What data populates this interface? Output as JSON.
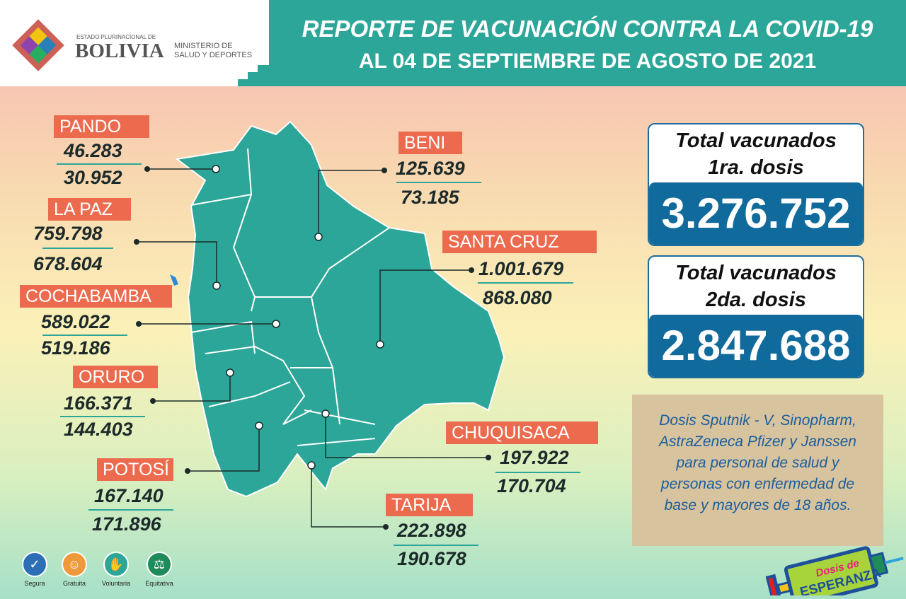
{
  "header": {
    "logo_small": "ESTADO PLURINACIONAL DE",
    "logo_big": "BOLIVIA",
    "ministry_line1": "MINISTERIO DE",
    "ministry_line2": "SALUD Y DEPORTES",
    "title": "REPORTE DE VACUNACIÓN CONTRA LA COVID-19",
    "subtitle": "AL 04 DE SEPTIEMBRE DE AGOSTO DE 2021"
  },
  "departments": [
    {
      "name": "PANDO",
      "dose1": "46.283",
      "dose2": "30.952"
    },
    {
      "name": "LA PAZ",
      "dose1": "759.798",
      "dose2": "678.604"
    },
    {
      "name": "COCHABAMBA",
      "dose1": "589.022",
      "dose2": "519.186"
    },
    {
      "name": "ORURO",
      "dose1": "166.371",
      "dose2": "144.403"
    },
    {
      "name": "POTOSÍ",
      "dose1": "167.140",
      "dose2": "171.896"
    },
    {
      "name": "BENI",
      "dose1": "125.639",
      "dose2": "73.185"
    },
    {
      "name": "SANTA CRUZ",
      "dose1": "1.001.679",
      "dose2": "868.080"
    },
    {
      "name": "CHUQUISACA",
      "dose1": "197.922",
      "dose2": "170.704"
    },
    {
      "name": "TARIJA",
      "dose1": "222.898",
      "dose2": "190.678"
    }
  ],
  "totals": {
    "first": {
      "line1": "Total vacunados",
      "line2": "1ra. dosis",
      "value": "3.276.752"
    },
    "second": {
      "line1": "Total vacunados",
      "line2": "2da. dosis",
      "value": "2.847.688"
    }
  },
  "note": {
    "lines": [
      "Dosis Sputnik - V, Sinopharm,",
      "AstraZeneca Pfizer y Janssen",
      "para personal de salud y",
      "personas con enfermedad de",
      "base y mayores de 18 años."
    ]
  },
  "badges": [
    {
      "label": "Segura",
      "icon": "shield-check-icon",
      "color": "#2c6fb5"
    },
    {
      "label": "Gratuita",
      "icon": "smiley-icon",
      "color": "#f0993a"
    },
    {
      "label": "Voluntaria",
      "icon": "raised-hand-icon",
      "color": "#2ba698"
    },
    {
      "label": "Equitativa",
      "icon": "scales-icon",
      "color": "#1f8a5a"
    }
  ],
  "campaign_logo": {
    "line1": "Dosis de",
    "line2": "ESPERANZA"
  },
  "colors": {
    "teal": "#2ba698",
    "label": "#ec6b4e",
    "blue": "#116a9c"
  }
}
